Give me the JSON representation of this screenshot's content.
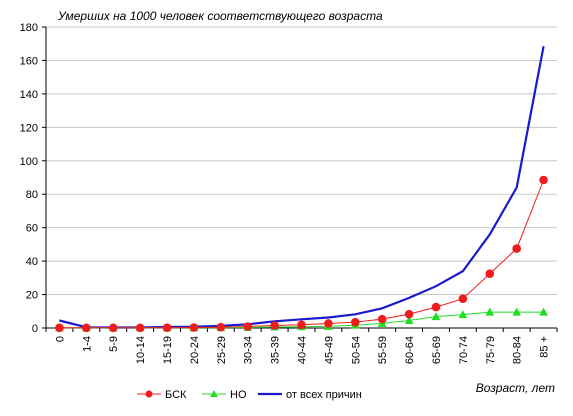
{
  "chart_data": {
    "type": "line",
    "title": "Умерших на 1000 человек соответствующего возраста",
    "xlabel": "Возраст, лет",
    "ylabel": "",
    "categories": [
      "0",
      "1-4",
      "5-9",
      "10-14",
      "15-19",
      "20-24",
      "25-29",
      "30-34",
      "35-39",
      "40-44",
      "45-49",
      "50-54",
      "55-59",
      "60-64",
      "65-69",
      "70-74",
      "75-79",
      "80-84",
      "85 +"
    ],
    "ylim": [
      0,
      180
    ],
    "yticks": [
      0,
      20,
      40,
      60,
      80,
      100,
      120,
      140,
      160,
      180
    ],
    "grid": "horizontal",
    "legend_position": "bottom",
    "series": [
      {
        "name": "БСК",
        "color": "#ee1c1c",
        "marker": "circle",
        "values": [
          0.1,
          0.1,
          0.1,
          0.1,
          0.2,
          0.3,
          0.5,
          0.9,
          1.5,
          1.9,
          2.7,
          3.5,
          5.3,
          8.3,
          12.5,
          17.5,
          32.5,
          47.5,
          88.5
        ]
      },
      {
        "name": "НО",
        "color": "#22dd22",
        "marker": "triangle",
        "values": [
          0.1,
          0.1,
          0.1,
          0.1,
          0.1,
          0.1,
          0.2,
          0.3,
          0.6,
          0.8,
          1.0,
          1.7,
          2.8,
          4.5,
          6.8,
          8.0,
          9.5,
          9.5,
          9.5
        ]
      },
      {
        "name": "от всех причин",
        "color": "#1a1acc",
        "marker": "none",
        "values": [
          4.5,
          0.4,
          0.3,
          0.3,
          0.6,
          0.8,
          1.3,
          2.2,
          4.0,
          5.2,
          6.3,
          8.2,
          11.8,
          18.0,
          25.0,
          34.0,
          56.0,
          84.0,
          168.5
        ]
      }
    ]
  }
}
